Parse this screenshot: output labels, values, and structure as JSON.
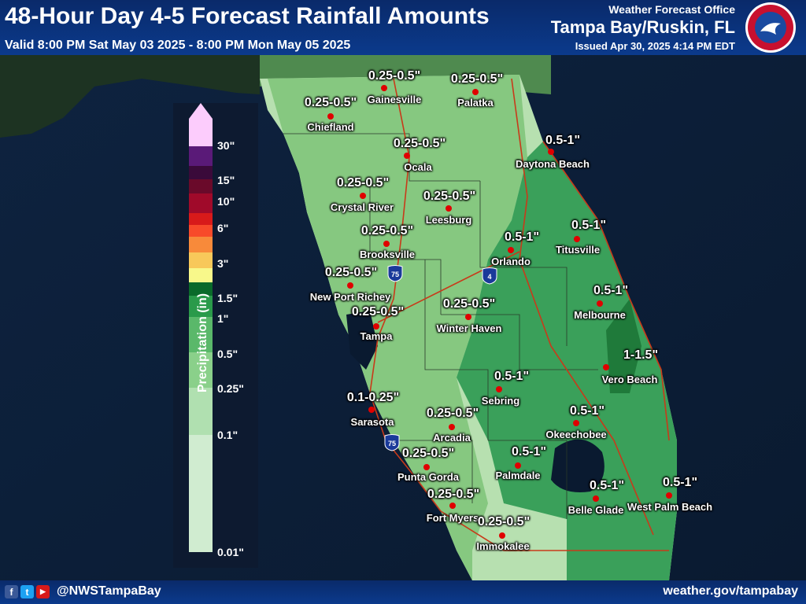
{
  "header": {
    "title": "48-Hour Day 4-5 Forecast Rainfall Amounts",
    "valid": "Valid 8:00 PM Sat May 03 2025 - 8:00 PM Mon May 05 2025",
    "office_line": "Weather Forecast Office",
    "office_name": "Tampa Bay/Ruskin, FL",
    "issued": "Issued Apr 30, 2025 4:14 PM EDT",
    "logo_icon": "nws-logo-icon"
  },
  "footer": {
    "handle": "@NWSTampaBay",
    "website": "weather.gov/tampabay",
    "icons": [
      "facebook-icon",
      "twitter-icon",
      "youtube-icon"
    ],
    "facebook_glyph": "f",
    "twitter_glyph": "t",
    "youtube_glyph": "▶"
  },
  "legend": {
    "title": "Precipitation (in)",
    "ticks": [
      "30\"",
      "15\"",
      "10\"",
      "6\"",
      "3\"",
      "1.5\"",
      "1\"",
      "0.5\"",
      "0.25\"",
      "0.1\"",
      "0.01\""
    ],
    "colors": [
      "#fcccfc",
      "#5a1a78",
      "#3a0a3a",
      "#6a0a2a",
      "#a00a2a",
      "#d81a1a",
      "#f84a2a",
      "#f88a3a",
      "#f8c85a",
      "#f8f88a",
      "#0a6a2a",
      "#2a9a4a",
      "#5ab86a",
      "#8ad08a",
      "#b0e0b0",
      "#d0ecd0"
    ]
  },
  "labels": [
    {
      "amount": "0.25-0.5\"",
      "city": "Gainesville"
    },
    {
      "amount": "0.25-0.5\"",
      "city": "Palatka"
    },
    {
      "amount": "0.25-0.5\"",
      "city": "Chiefland"
    },
    {
      "amount": "0.25-0.5\"",
      "city": "Ocala"
    },
    {
      "amount": "0.5-1\"",
      "city": "Daytona Beach"
    },
    {
      "amount": "0.25-0.5\"",
      "city": "Crystal River"
    },
    {
      "amount": "0.25-0.5\"",
      "city": "Leesburg"
    },
    {
      "amount": "0.25-0.5\"",
      "city": "Brooksville"
    },
    {
      "amount": "0.5-1\"",
      "city": "Orlando"
    },
    {
      "amount": "0.5-1\"",
      "city": "Titusville"
    },
    {
      "amount": "0.25-0.5\"",
      "city": "New Port Richey"
    },
    {
      "amount": "0.5-1\"",
      "city": "Melbourne"
    },
    {
      "amount": "0.25-0.5\"",
      "city": "Tampa"
    },
    {
      "amount": "0.25-0.5\"",
      "city": "Winter Haven"
    },
    {
      "amount": "1-1.5\"",
      "city": "Vero Beach"
    },
    {
      "amount": "0.5-1\"",
      "city": "Sebring"
    },
    {
      "amount": "0.1-0.25\"",
      "city": "Sarasota"
    },
    {
      "amount": "0.25-0.5\"",
      "city": "Arcadia"
    },
    {
      "amount": "0.5-1\"",
      "city": "Okeechobee"
    },
    {
      "amount": "0.25-0.5\"",
      "city": "Punta Gorda"
    },
    {
      "amount": "0.5-1\"",
      "city": "Palmdale"
    },
    {
      "amount": "0.5-1\"",
      "city": "Belle Glade"
    },
    {
      "amount": "0.5-1\"",
      "city": "West Palm Beach"
    },
    {
      "amount": "0.25-0.5\"",
      "city": "Fort Myers"
    },
    {
      "amount": "0.25-0.5\"",
      "city": "Immokalee"
    }
  ],
  "shields": [
    {
      "route": "75"
    },
    {
      "route": "4"
    },
    {
      "route": "75"
    }
  ]
}
